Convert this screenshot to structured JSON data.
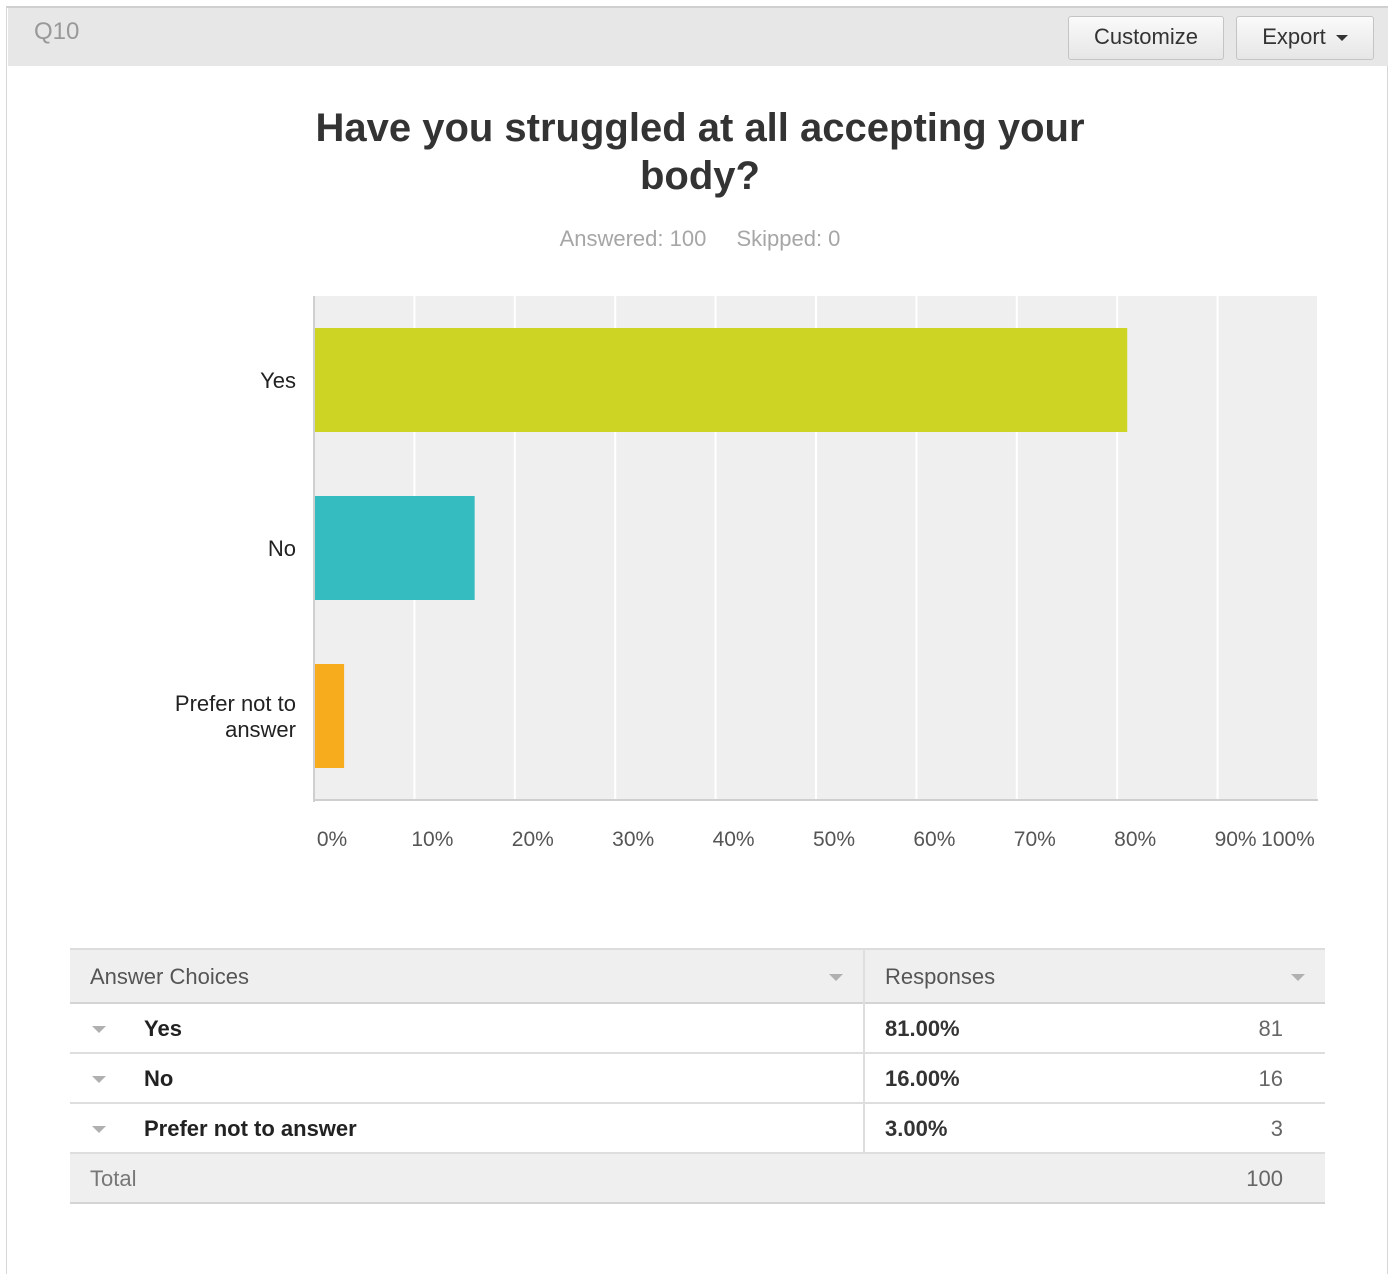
{
  "header": {
    "question_number": "Q10",
    "customize_label": "Customize",
    "export_label": "Export"
  },
  "summary": {
    "answered": "Answered: 100",
    "skipped": "Skipped: 0"
  },
  "chart_data": {
    "type": "bar",
    "orientation": "horizontal",
    "title": "Have you struggled at all accepting your body?",
    "categories": [
      "Yes",
      "No",
      "Prefer not to answer"
    ],
    "category_label_lines": [
      [
        "Yes"
      ],
      [
        "No"
      ],
      [
        "Prefer not to",
        "answer"
      ]
    ],
    "values": [
      81,
      16,
      3
    ],
    "colors": [
      "#cdd424",
      "#34bcc0",
      "#f6ac1c"
    ],
    "xlim": [
      0,
      100
    ],
    "x_ticks": [
      "0%",
      "10%",
      "20%",
      "30%",
      "40%",
      "50%",
      "60%",
      "70%",
      "80%",
      "90%",
      "100%"
    ],
    "grid": true,
    "plot_background": "#efefef"
  },
  "table": {
    "headers": [
      "Answer Choices",
      "Responses"
    ],
    "rows": [
      {
        "choice": "Yes",
        "percent": "81.00%",
        "count": "81"
      },
      {
        "choice": "No",
        "percent": "16.00%",
        "count": "16"
      },
      {
        "choice": "Prefer not to answer",
        "percent": "3.00%",
        "count": "3"
      }
    ],
    "total_label": "Total",
    "total_count": "100"
  }
}
